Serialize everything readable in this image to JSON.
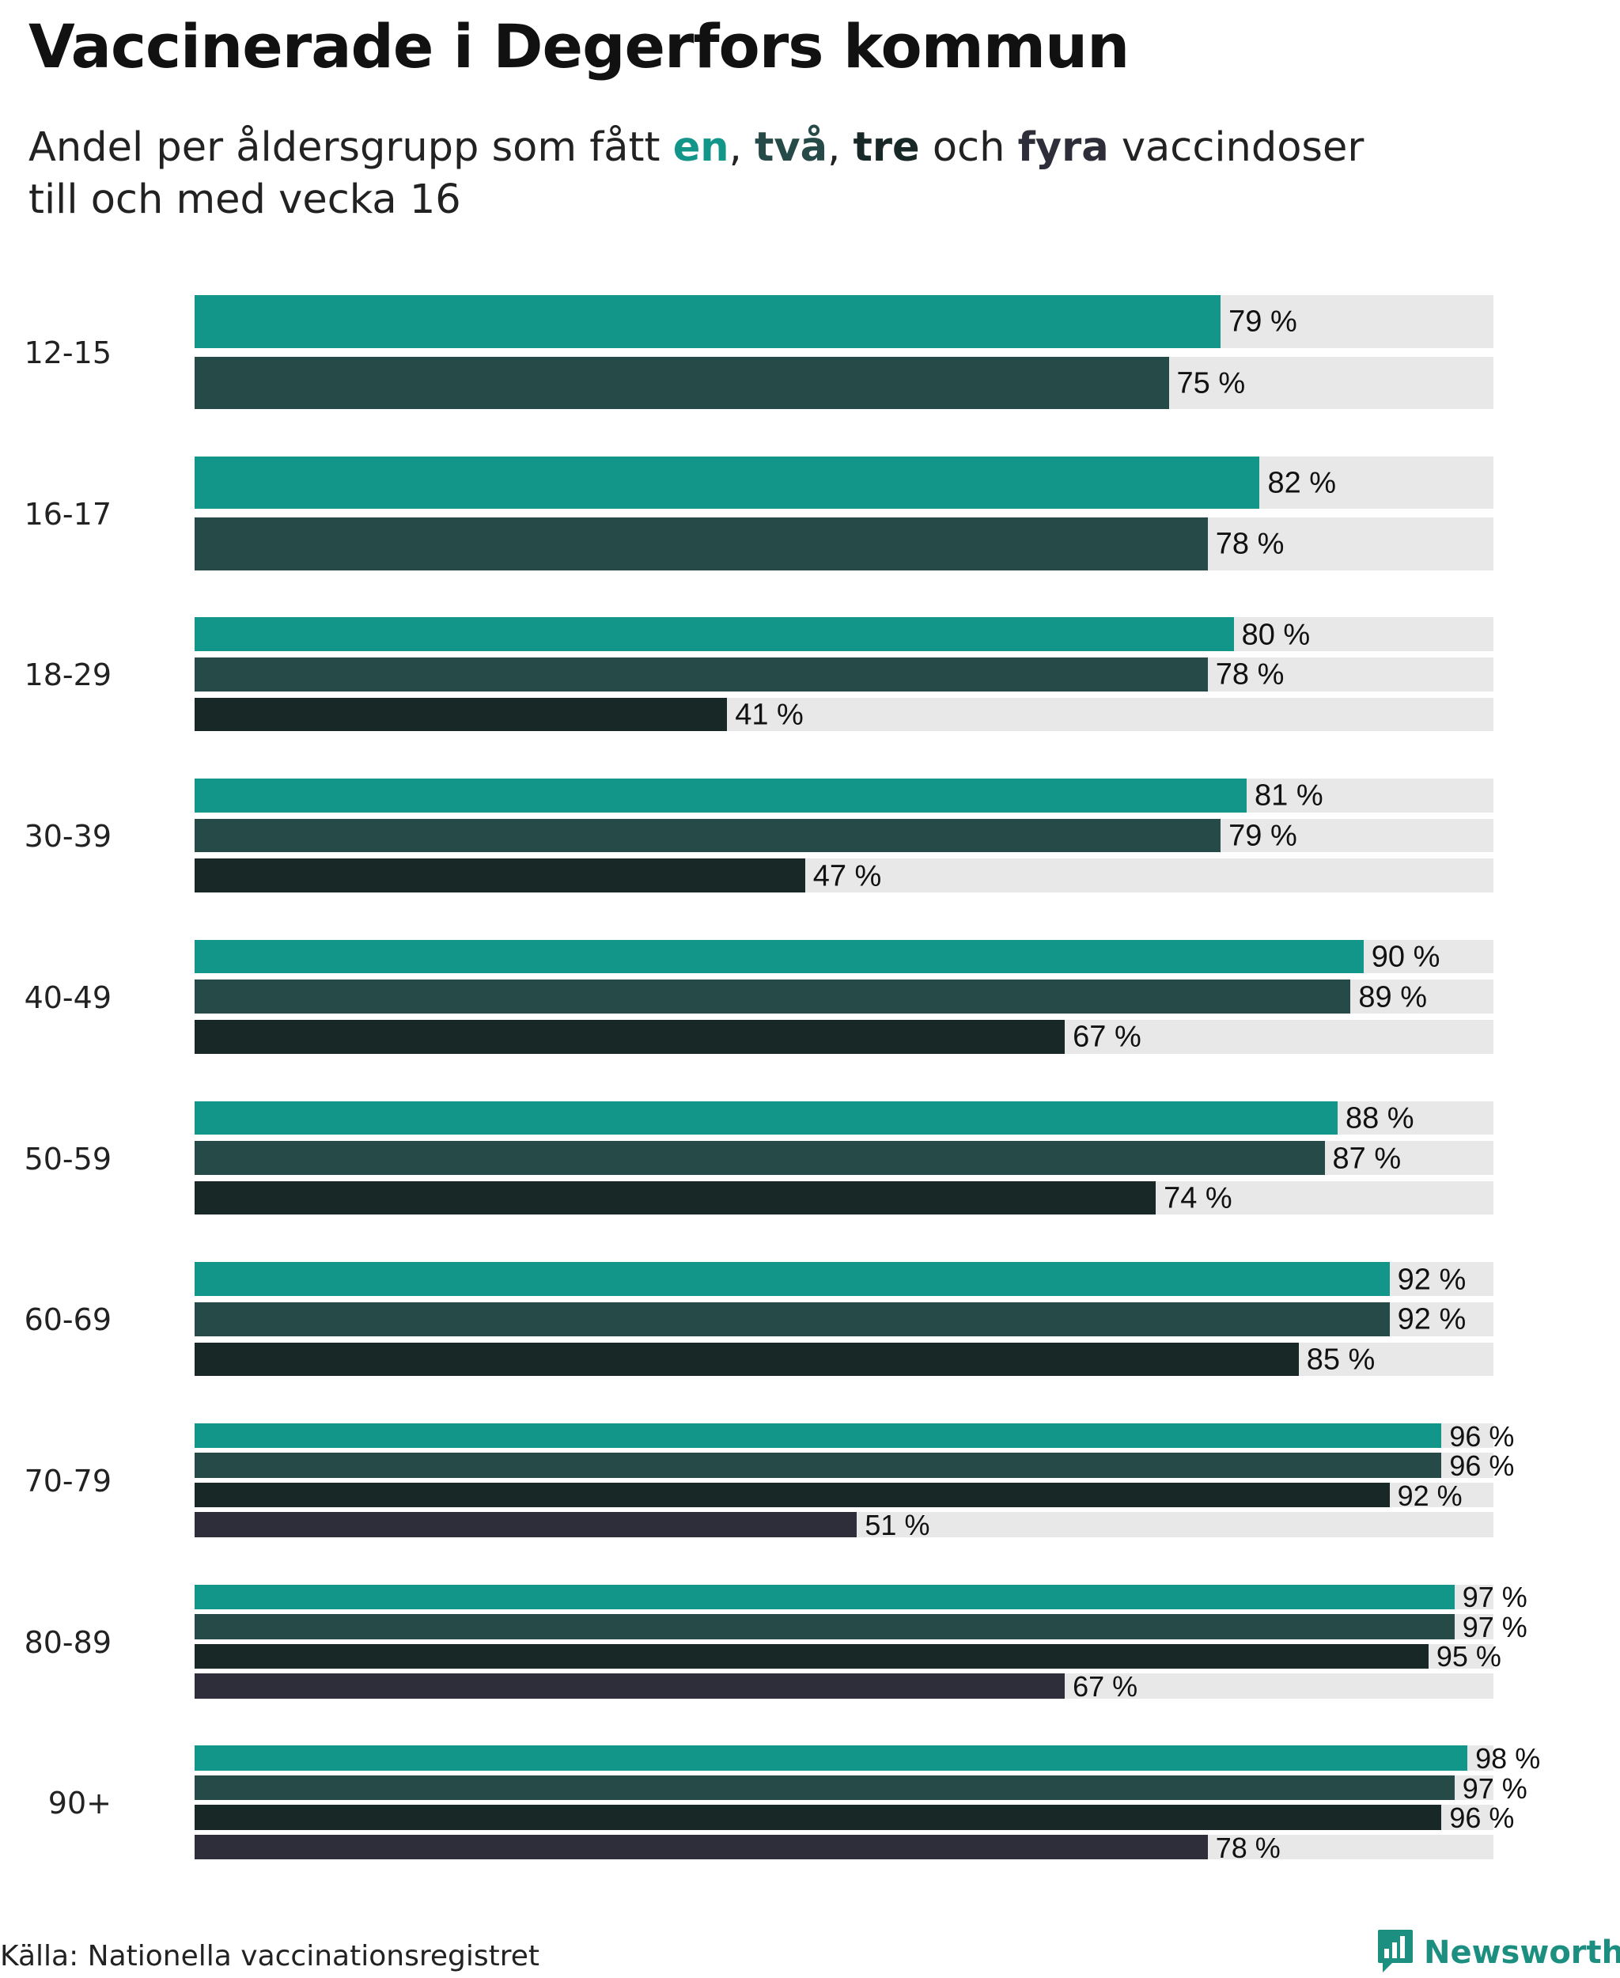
{
  "header": {
    "title": "Vaccinerade i Degerfors kommun",
    "subtitle_prefix": "Andel per åldersgrupp som fått ",
    "subtitle_en": "en",
    "subtitle_sep1": ", ",
    "subtitle_tva": "två",
    "subtitle_sep2": ", ",
    "subtitle_tre": "tre",
    "subtitle_och": " och ",
    "subtitle_fyra": "fyra",
    "subtitle_suffix": " vaccindoser",
    "subtitle_line2": "till och med vecka 16"
  },
  "colors": {
    "one_dose": "#12968a",
    "two_doses": "#264a48",
    "three_doses": "#182827",
    "four_doses": "#2e2e3a",
    "track": "#e8e8e8",
    "brand": "#1d8f80"
  },
  "chart_data": {
    "type": "bar",
    "orientation": "horizontal",
    "categories": [
      "12-15",
      "16-17",
      "18-29",
      "30-39",
      "40-49",
      "50-59",
      "60-69",
      "70-79",
      "80-89",
      "90+"
    ],
    "series": [
      {
        "name": "en",
        "values": [
          79,
          82,
          80,
          81,
          90,
          88,
          92,
          96,
          97,
          98
        ]
      },
      {
        "name": "två",
        "values": [
          75,
          78,
          78,
          79,
          89,
          87,
          92,
          96,
          97,
          97
        ]
      },
      {
        "name": "tre",
        "values": [
          null,
          null,
          41,
          47,
          67,
          74,
          85,
          92,
          95,
          96
        ]
      },
      {
        "name": "fyra",
        "values": [
          null,
          null,
          null,
          null,
          null,
          null,
          null,
          51,
          67,
          78
        ]
      }
    ],
    "value_suffix": " %",
    "xlim": [
      0,
      100
    ],
    "title": "Vaccinerade i Degerfors kommun",
    "xlabel": "",
    "ylabel": ""
  },
  "footer": {
    "source": "Källa: Nationella vaccinationsregistret",
    "brand_name": "Newsworthy",
    "brand_icon": "newsworthy-logo-icon"
  }
}
